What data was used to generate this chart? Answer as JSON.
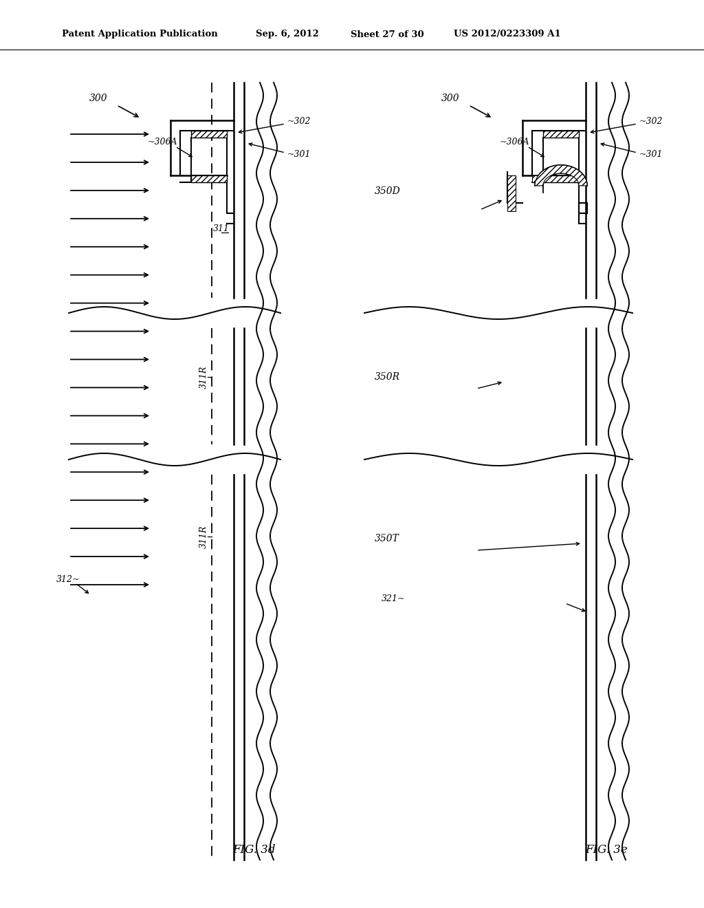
{
  "bg_color": "#ffffff",
  "header_text": "Patent Application Publication",
  "header_date": "Sep. 6, 2012",
  "header_sheet": "Sheet 27 of 30",
  "header_patent": "US 2012/0223309 A1",
  "fig3d_label": "FIG. 3d",
  "fig3e_label": "FIG. 3e"
}
